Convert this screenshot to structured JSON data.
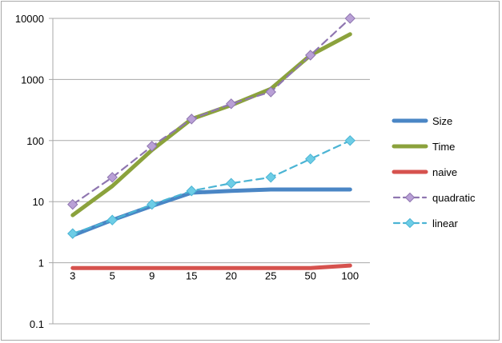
{
  "chart_data": {
    "type": "line",
    "yscale": "log",
    "ylim": [
      0.1,
      10000
    ],
    "y_ticks": [
      "0.1",
      "1",
      "10",
      "100",
      "1000",
      "10000"
    ],
    "categories": [
      "3",
      "5",
      "9",
      "15",
      "20",
      "25",
      "50",
      "100"
    ],
    "grid": true,
    "legend_position": "right",
    "series": [
      {
        "name": "Size",
        "values": [
          2.8,
          5,
          8.5,
          14,
          15,
          15.8,
          15.8,
          15.8
        ],
        "color": "#4a86c5",
        "style": "solid",
        "marker": "none"
      },
      {
        "name": "Time",
        "values": [
          6,
          18,
          70,
          225,
          380,
          700,
          2500,
          5500
        ],
        "color": "#8ba23c",
        "style": "solid",
        "marker": "none"
      },
      {
        "name": "naive",
        "values": [
          0.82,
          0.82,
          0.82,
          0.82,
          0.82,
          0.82,
          0.82,
          0.9
        ],
        "color": "#d6524e",
        "style": "solid",
        "marker": "none"
      },
      {
        "name": "quadratic",
        "values": [
          9,
          25,
          81,
          225,
          400,
          625,
          2500,
          10000
        ],
        "color": "#8f76b0",
        "style": "dashed",
        "marker": "diamond",
        "marker_color": "#b9a0d6"
      },
      {
        "name": "linear",
        "values": [
          3,
          5,
          9,
          15,
          20,
          25,
          50,
          100
        ],
        "color": "#4bb4d4",
        "style": "dashed",
        "marker": "diamond",
        "marker_color": "#6dcde6"
      }
    ]
  }
}
